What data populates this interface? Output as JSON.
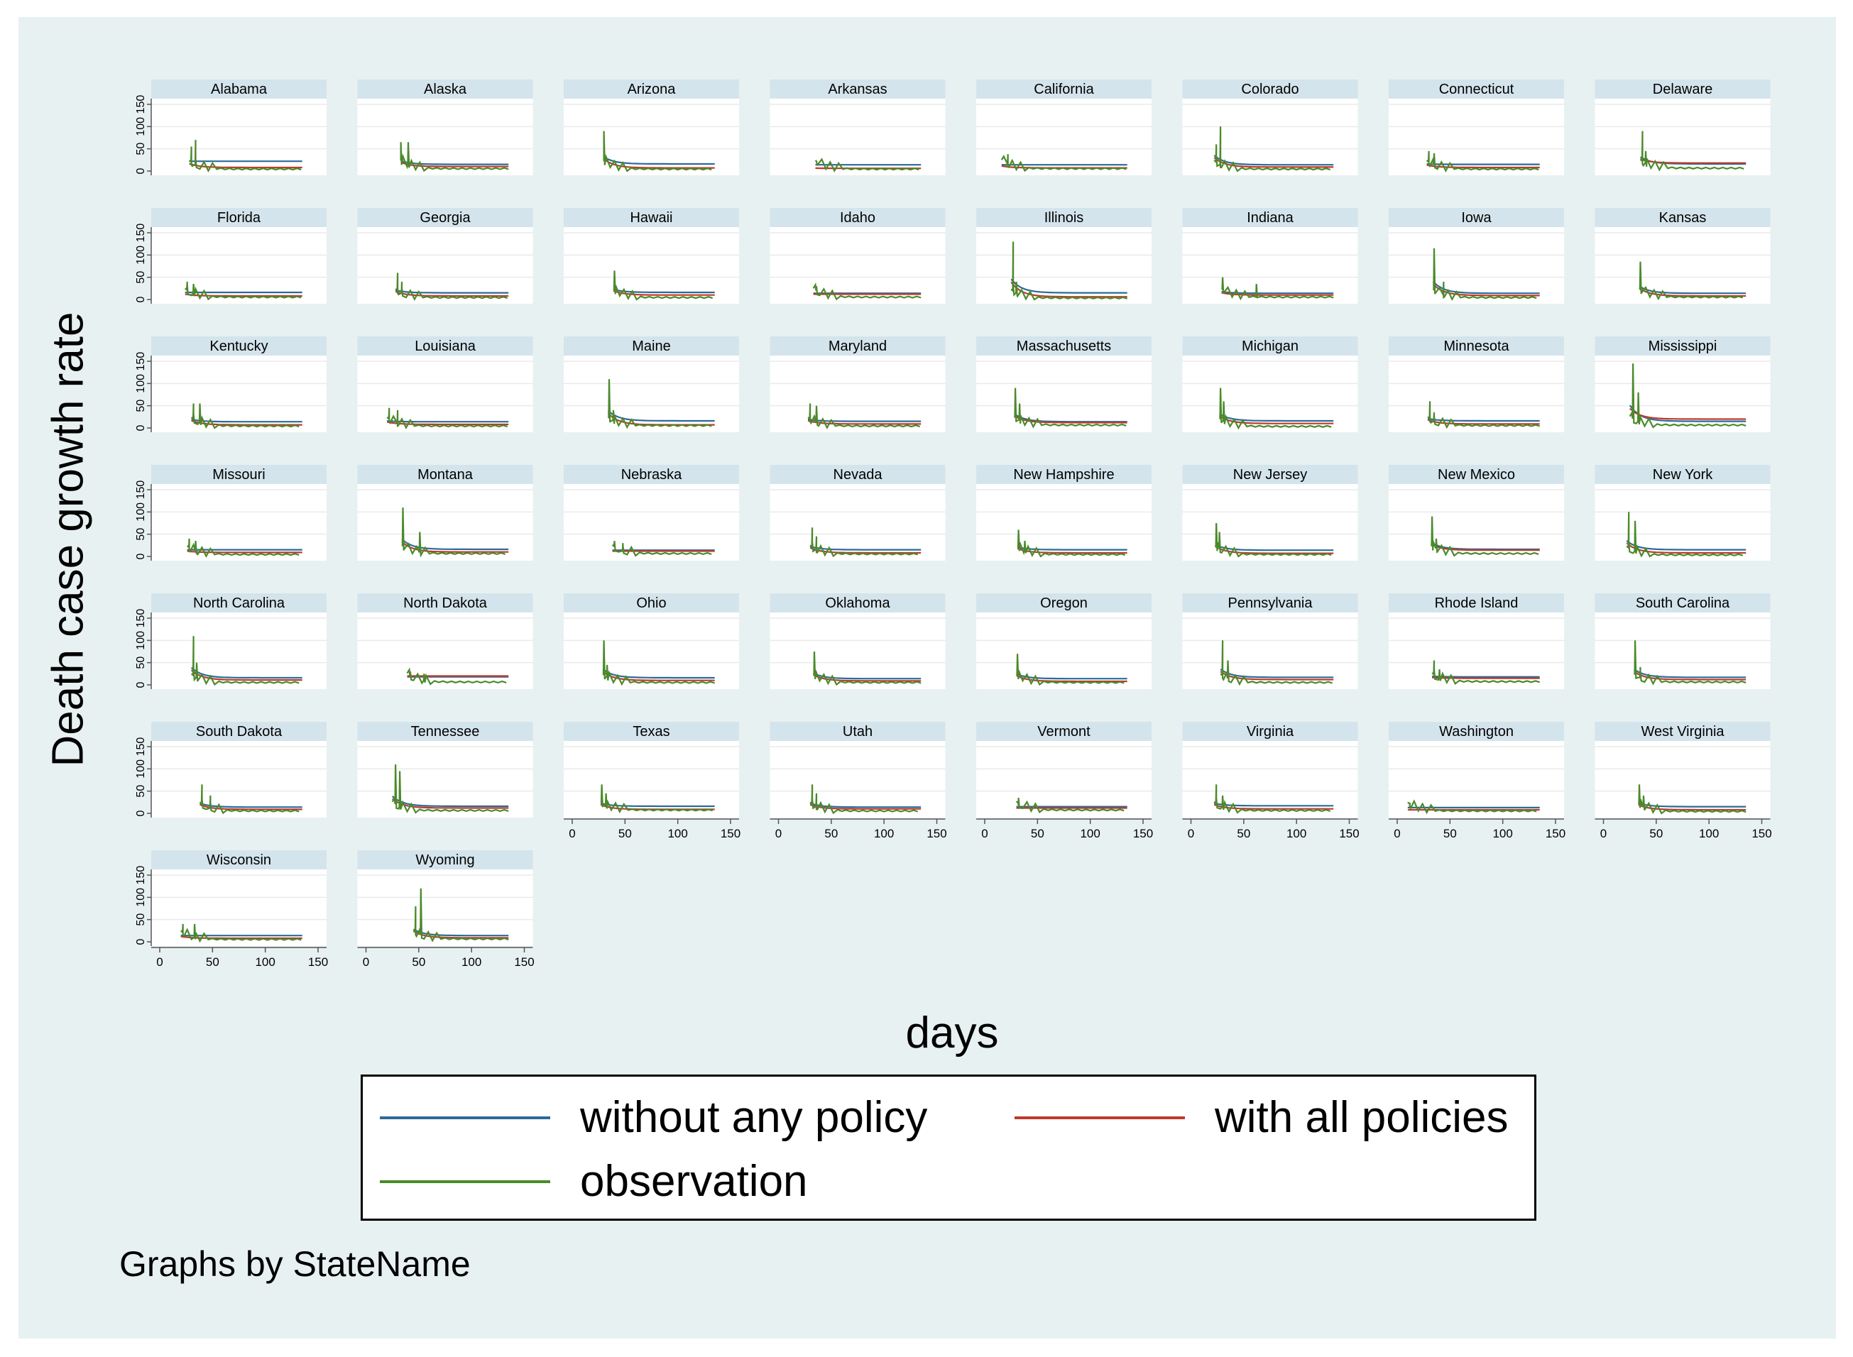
{
  "colors": {
    "background": "#e8f1f1",
    "panel_bg": "#ffffff",
    "strip_bg": "#d4e4ec",
    "without_any_policy": "#2b6a9a",
    "with_all_policies": "#c0392b",
    "observation": "#4a8a2a"
  },
  "y_axis_title": "Death case growth rate",
  "x_axis_title": "days",
  "note": "Graphs by StateName",
  "legend": {
    "without": "without any policy",
    "with": "with all policies",
    "observation": "observation"
  },
  "chart_data": {
    "type": "line",
    "layout": "small multiples, 8 columns",
    "x_ticks": [
      0,
      50,
      100,
      150
    ],
    "y_ticks": [
      0,
      50,
      100,
      150
    ],
    "xlim": [
      0,
      150
    ],
    "ylim": [
      0,
      150
    ],
    "series_names": [
      "without any policy",
      "with all policies",
      "observation"
    ],
    "panels": [
      {
        "state": "Alabama",
        "start": 28,
        "end": 135,
        "peaks": [
          [
            30,
            55
          ],
          [
            34,
            70
          ]
        ],
        "blue": 22,
        "red": 8,
        "green": 4
      },
      {
        "state": "Alaska",
        "start": 33,
        "end": 135,
        "peaks": [
          [
            33,
            65
          ],
          [
            40,
            65
          ]
        ],
        "blue": 15,
        "red": 10,
        "green": 5
      },
      {
        "state": "Arizona",
        "start": 30,
        "end": 135,
        "peaks": [
          [
            30,
            90
          ]
        ],
        "blue": 16,
        "red": 7,
        "green": 4
      },
      {
        "state": "Arkansas",
        "start": 35,
        "end": 135,
        "peaks": [
          [
            36,
            22
          ]
        ],
        "blue": 14,
        "red": 6,
        "green": 4
      },
      {
        "state": "California",
        "start": 16,
        "end": 135,
        "peaks": [
          [
            22,
            38
          ]
        ],
        "blue": 14,
        "red": 7,
        "green": 5
      },
      {
        "state": "Colorado",
        "start": 22,
        "end": 135,
        "peaks": [
          [
            28,
            100
          ],
          [
            24,
            60
          ]
        ],
        "blue": 14,
        "red": 9,
        "green": 4
      },
      {
        "state": "Connecticut",
        "start": 28,
        "end": 135,
        "peaks": [
          [
            30,
            45
          ],
          [
            35,
            40
          ]
        ],
        "blue": 15,
        "red": 8,
        "green": 4
      },
      {
        "state": "Delaware",
        "start": 35,
        "end": 135,
        "peaks": [
          [
            37,
            90
          ],
          [
            40,
            45
          ]
        ],
        "blue": 16,
        "red": 18,
        "green": 6
      },
      {
        "state": "Florida",
        "start": 24,
        "end": 135,
        "peaks": [
          [
            26,
            40
          ],
          [
            32,
            35
          ]
        ],
        "blue": 16,
        "red": 8,
        "green": 5
      },
      {
        "state": "Georgia",
        "start": 28,
        "end": 135,
        "peaks": [
          [
            30,
            60
          ],
          [
            34,
            40
          ]
        ],
        "blue": 15,
        "red": 8,
        "green": 4
      },
      {
        "state": "Hawaii",
        "start": 39,
        "end": 135,
        "peaks": [
          [
            40,
            65
          ]
        ],
        "blue": 16,
        "red": 10,
        "green": 4
      },
      {
        "state": "Idaho",
        "start": 33,
        "end": 135,
        "peaks": [
          [
            36,
            30
          ]
        ],
        "blue": 14,
        "red": 12,
        "green": 5
      },
      {
        "state": "Illinois",
        "start": 25,
        "end": 135,
        "peaks": [
          [
            27,
            130
          ],
          [
            30,
            40
          ]
        ],
        "blue": 15,
        "red": 6,
        "green": 3
      },
      {
        "state": "Indiana",
        "start": 29,
        "end": 135,
        "peaks": [
          [
            30,
            50
          ],
          [
            62,
            35
          ]
        ],
        "blue": 14,
        "red": 10,
        "green": 5
      },
      {
        "state": "Iowa",
        "start": 34,
        "end": 135,
        "peaks": [
          [
            35,
            115
          ],
          [
            44,
            40
          ]
        ],
        "blue": 14,
        "red": 9,
        "green": 4
      },
      {
        "state": "Kansas",
        "start": 34,
        "end": 135,
        "peaks": [
          [
            35,
            85
          ]
        ],
        "blue": 14,
        "red": 8,
        "green": 5
      },
      {
        "state": "Kentucky",
        "start": 30,
        "end": 135,
        "peaks": [
          [
            32,
            55
          ],
          [
            38,
            55
          ]
        ],
        "blue": 14,
        "red": 7,
        "green": 4
      },
      {
        "state": "Louisiana",
        "start": 20,
        "end": 135,
        "peaks": [
          [
            22,
            45
          ],
          [
            30,
            40
          ]
        ],
        "blue": 14,
        "red": 8,
        "green": 4
      },
      {
        "state": "Maine",
        "start": 34,
        "end": 135,
        "peaks": [
          [
            35,
            110
          ],
          [
            39,
            40
          ]
        ],
        "blue": 16,
        "red": 7,
        "green": 5
      },
      {
        "state": "Maryland",
        "start": 28,
        "end": 135,
        "peaks": [
          [
            30,
            55
          ],
          [
            36,
            50
          ]
        ],
        "blue": 15,
        "red": 9,
        "green": 4
      },
      {
        "state": "Massachusetts",
        "start": 28,
        "end": 135,
        "peaks": [
          [
            29,
            90
          ],
          [
            33,
            55
          ]
        ],
        "blue": 14,
        "red": 12,
        "green": 6
      },
      {
        "state": "Michigan",
        "start": 27,
        "end": 135,
        "peaks": [
          [
            28,
            90
          ],
          [
            31,
            60
          ]
        ],
        "blue": 16,
        "red": 10,
        "green": 3
      },
      {
        "state": "Minnesota",
        "start": 29,
        "end": 135,
        "peaks": [
          [
            31,
            60
          ],
          [
            35,
            35
          ]
        ],
        "blue": 16,
        "red": 9,
        "green": 5
      },
      {
        "state": "Mississippi",
        "start": 25,
        "end": 135,
        "peaks": [
          [
            28,
            145
          ],
          [
            33,
            80
          ]
        ],
        "blue": 15,
        "red": 20,
        "green": 6
      },
      {
        "state": "Missouri",
        "start": 26,
        "end": 135,
        "peaks": [
          [
            28,
            40
          ],
          [
            34,
            35
          ]
        ],
        "blue": 15,
        "red": 9,
        "green": 4
      },
      {
        "state": "Montana",
        "start": 34,
        "end": 135,
        "peaks": [
          [
            35,
            110
          ],
          [
            51,
            55
          ]
        ],
        "blue": 16,
        "red": 10,
        "green": 6
      },
      {
        "state": "Nebraska",
        "start": 38,
        "end": 135,
        "peaks": [
          [
            40,
            35
          ],
          [
            48,
            30
          ]
        ],
        "blue": 14,
        "red": 12,
        "green": 6
      },
      {
        "state": "Nevada",
        "start": 30,
        "end": 135,
        "peaks": [
          [
            32,
            65
          ],
          [
            36,
            45
          ]
        ],
        "blue": 15,
        "red": 8,
        "green": 5
      },
      {
        "state": "New Hampshire",
        "start": 31,
        "end": 135,
        "peaks": [
          [
            32,
            60
          ],
          [
            38,
            35
          ]
        ],
        "blue": 15,
        "red": 8,
        "green": 4
      },
      {
        "state": "New Jersey",
        "start": 23,
        "end": 135,
        "peaks": [
          [
            24,
            75
          ],
          [
            27,
            55
          ]
        ],
        "blue": 14,
        "red": 7,
        "green": 4
      },
      {
        "state": "New Mexico",
        "start": 32,
        "end": 135,
        "peaks": [
          [
            33,
            90
          ],
          [
            37,
            40
          ]
        ],
        "blue": 16,
        "red": 14,
        "green": 6
      },
      {
        "state": "New York",
        "start": 22,
        "end": 135,
        "peaks": [
          [
            24,
            100
          ],
          [
            30,
            80
          ]
        ],
        "blue": 15,
        "red": 8,
        "green": 3
      },
      {
        "state": "North Carolina",
        "start": 30,
        "end": 135,
        "peaks": [
          [
            32,
            110
          ],
          [
            35,
            50
          ]
        ],
        "blue": 16,
        "red": 11,
        "green": 5
      },
      {
        "state": "North Dakota",
        "start": 39,
        "end": 135,
        "peaks": [
          [
            42,
            30
          ],
          [
            55,
            25
          ]
        ],
        "blue": 18,
        "red": 20,
        "green": 6
      },
      {
        "state": "Ohio",
        "start": 29,
        "end": 135,
        "peaks": [
          [
            30,
            100
          ],
          [
            33,
            45
          ]
        ],
        "blue": 16,
        "red": 10,
        "green": 5
      },
      {
        "state": "Oklahoma",
        "start": 33,
        "end": 135,
        "peaks": [
          [
            34,
            75
          ]
        ],
        "blue": 14,
        "red": 9,
        "green": 5
      },
      {
        "state": "Oregon",
        "start": 30,
        "end": 135,
        "peaks": [
          [
            31,
            70
          ]
        ],
        "blue": 14,
        "red": 8,
        "green": 5
      },
      {
        "state": "Pennsylvania",
        "start": 28,
        "end": 135,
        "peaks": [
          [
            30,
            100
          ],
          [
            35,
            55
          ]
        ],
        "blue": 17,
        "red": 12,
        "green": 5
      },
      {
        "state": "Rhode Island",
        "start": 33,
        "end": 135,
        "peaks": [
          [
            35,
            55
          ],
          [
            40,
            35
          ]
        ],
        "blue": 18,
        "red": 15,
        "green": 7
      },
      {
        "state": "South Carolina",
        "start": 29,
        "end": 135,
        "peaks": [
          [
            30,
            100
          ],
          [
            35,
            40
          ]
        ],
        "blue": 17,
        "red": 12,
        "green": 6
      },
      {
        "state": "South Dakota",
        "start": 38,
        "end": 135,
        "peaks": [
          [
            40,
            65
          ],
          [
            48,
            40
          ]
        ],
        "blue": 14,
        "red": 9,
        "green": 5
      },
      {
        "state": "Tennessee",
        "start": 25,
        "end": 135,
        "peaks": [
          [
            28,
            110
          ],
          [
            32,
            95
          ]
        ],
        "blue": 16,
        "red": 12,
        "green": 6
      },
      {
        "state": "Texas",
        "start": 27,
        "end": 135,
        "peaks": [
          [
            28,
            65
          ],
          [
            32,
            45
          ]
        ],
        "blue": 16,
        "red": 9,
        "green": 7
      },
      {
        "state": "Utah",
        "start": 30,
        "end": 135,
        "peaks": [
          [
            32,
            65
          ],
          [
            36,
            45
          ]
        ],
        "blue": 14,
        "red": 10,
        "green": 5
      },
      {
        "state": "Vermont",
        "start": 30,
        "end": 135,
        "peaks": [
          [
            32,
            18
          ]
        ],
        "blue": 15,
        "red": 12,
        "green": 7
      },
      {
        "state": "Virginia",
        "start": 22,
        "end": 135,
        "peaks": [
          [
            24,
            65
          ],
          [
            30,
            40
          ]
        ],
        "blue": 17,
        "red": 10,
        "green": 6
      },
      {
        "state": "Washington",
        "start": 10,
        "end": 135,
        "peaks": [
          [
            12,
            22
          ]
        ],
        "blue": 13,
        "red": 8,
        "green": 5
      },
      {
        "state": "West Virginia",
        "start": 33,
        "end": 135,
        "peaks": [
          [
            34,
            65
          ],
          [
            38,
            40
          ]
        ],
        "blue": 15,
        "red": 8,
        "green": 4
      },
      {
        "state": "Wisconsin",
        "start": 20,
        "end": 135,
        "peaks": [
          [
            22,
            40
          ],
          [
            33,
            40
          ]
        ],
        "blue": 14,
        "red": 8,
        "green": 5
      },
      {
        "state": "Wyoming",
        "start": 45,
        "end": 135,
        "peaks": [
          [
            47,
            80
          ],
          [
            52,
            120
          ]
        ],
        "blue": 14,
        "red": 9,
        "green": 6
      }
    ]
  }
}
